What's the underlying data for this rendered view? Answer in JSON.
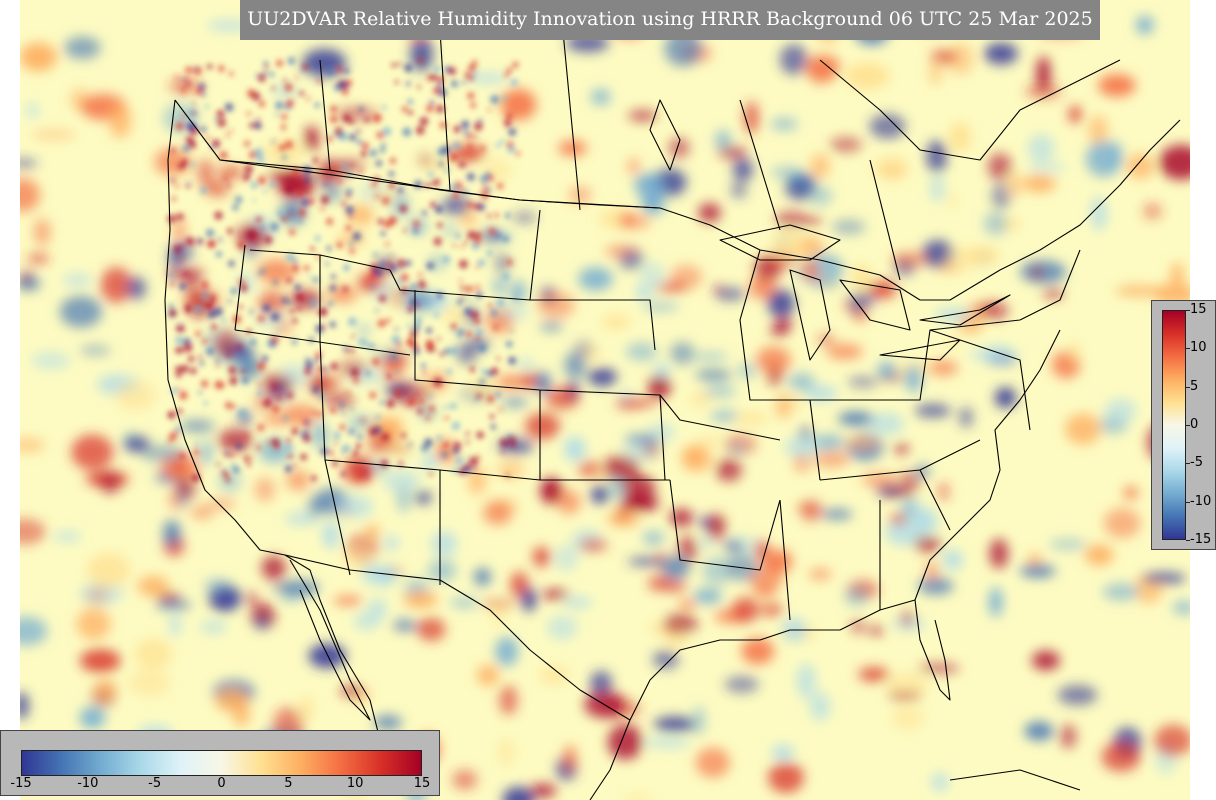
{
  "title": "UU2DVAR Relative Humidity Innovation using HRRR Background 06 UTC 25 Mar 2025",
  "colors": {
    "background_field": "#fdfbc2",
    "title_box": "#858585",
    "colorbar_frame": "#b8b8b8",
    "boundary_lines": "#000000",
    "scale_low": "#313695",
    "scale_mid": "#f7f7e6",
    "scale_high": "#a50026"
  },
  "colorbar": {
    "min": -15,
    "max": 15,
    "right_ticks": [
      "15",
      "10",
      "5",
      "0",
      "-5",
      "-10",
      "-15"
    ],
    "bottom_ticks": [
      "-15",
      "-10",
      "-5",
      "0",
      "5",
      "10",
      "15"
    ]
  }
}
